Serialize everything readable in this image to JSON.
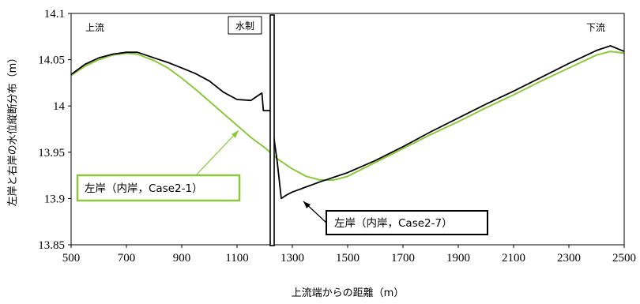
{
  "chart_data": {
    "type": "line",
    "xlabel": "上流端からの距離（m）",
    "ylabel": "左岸と右岸の水位縦断分布（m）",
    "xlim": [
      500,
      2500
    ],
    "ylim": [
      13.85,
      14.1
    ],
    "x_ticks": [
      "500",
      "700",
      "900",
      "1100",
      "1300",
      "1500",
      "1700",
      "1900",
      "2100",
      "2300",
      "2500"
    ],
    "y_ticks": [
      "13.85",
      "13.9",
      "13.95",
      "14",
      "14.05",
      "14.1"
    ],
    "annotations": {
      "upstream": "上流",
      "downstream": "下流",
      "groyne": "水制"
    },
    "groyne_x": 1222,
    "grid": false,
    "series": [
      {
        "name": "左岸（内岸，Case2-1）",
        "color": "#8dc63f",
        "points": [
          [
            500,
            14.033
          ],
          [
            550,
            14.043
          ],
          [
            600,
            14.05
          ],
          [
            650,
            14.055
          ],
          [
            700,
            14.057
          ],
          [
            740,
            14.056
          ],
          [
            800,
            14.049
          ],
          [
            850,
            14.041
          ],
          [
            900,
            14.03
          ],
          [
            950,
            14.018
          ],
          [
            1000,
            14.005
          ],
          [
            1050,
            13.992
          ],
          [
            1100,
            13.979
          ],
          [
            1150,
            13.966
          ],
          [
            1200,
            13.955
          ],
          [
            1250,
            13.942
          ],
          [
            1300,
            13.932
          ],
          [
            1350,
            13.924
          ],
          [
            1400,
            13.92
          ],
          [
            1450,
            13.92
          ],
          [
            1500,
            13.924
          ],
          [
            1600,
            13.939
          ],
          [
            1700,
            13.954
          ],
          [
            1800,
            13.969
          ],
          [
            1900,
            13.983
          ],
          [
            2000,
            13.998
          ],
          [
            2100,
            14.012
          ],
          [
            2200,
            14.027
          ],
          [
            2300,
            14.041
          ],
          [
            2400,
            14.055
          ],
          [
            2450,
            14.059
          ],
          [
            2500,
            14.057
          ]
        ]
      },
      {
        "name": "左岸（内岸，Case2-7）",
        "color": "#000000",
        "points": [
          [
            500,
            14.034
          ],
          [
            550,
            14.045
          ],
          [
            600,
            14.052
          ],
          [
            650,
            14.056
          ],
          [
            700,
            14.058
          ],
          [
            740,
            14.058
          ],
          [
            800,
            14.052
          ],
          [
            850,
            14.047
          ],
          [
            900,
            14.041
          ],
          [
            950,
            14.035
          ],
          [
            1000,
            14.027
          ],
          [
            1050,
            14.015
          ],
          [
            1100,
            14.007
          ],
          [
            1150,
            14.006
          ],
          [
            1190,
            14.014
          ],
          [
            1195,
            13.995
          ],
          [
            1220,
            13.995
          ],
          [
            1245,
            13.94
          ],
          [
            1260,
            13.9
          ],
          [
            1280,
            13.904
          ],
          [
            1300,
            13.907
          ],
          [
            1400,
            13.918
          ],
          [
            1500,
            13.928
          ],
          [
            1600,
            13.941
          ],
          [
            1700,
            13.956
          ],
          [
            1800,
            13.972
          ],
          [
            1900,
            13.987
          ],
          [
            2000,
            14.002
          ],
          [
            2100,
            14.016
          ],
          [
            2200,
            14.031
          ],
          [
            2300,
            14.046
          ],
          [
            2400,
            14.06
          ],
          [
            2450,
            14.065
          ],
          [
            2500,
            14.059
          ]
        ]
      }
    ]
  }
}
